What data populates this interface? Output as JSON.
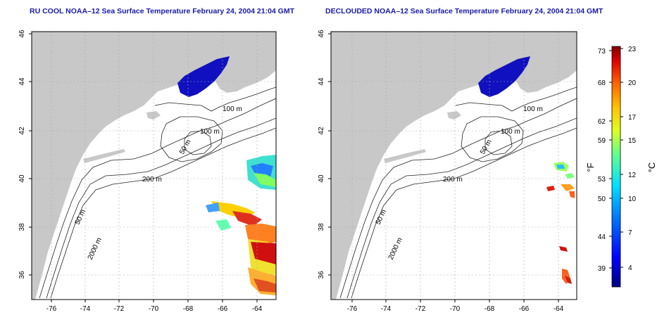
{
  "panels": [
    {
      "title": "RU COOL NOAA–12 Sea Surface Temperature February 24, 2004 21:04 GMT",
      "x_ticks": [
        "-76",
        "-74",
        "-72",
        "-70",
        "-68",
        "-66",
        "-64"
      ],
      "y_ticks": [
        "36",
        "38",
        "40",
        "42",
        "44",
        "46"
      ],
      "contour_labels": [
        "100 m",
        "100 m",
        "50 m",
        "200 m",
        "50 m",
        "2000 m"
      ]
    },
    {
      "title": "DECLOUDED NOAA–12 Sea Surface Temperature February 24, 2004 21:04 GMT",
      "x_ticks": [
        "-76",
        "-74",
        "-72",
        "-70",
        "-68",
        "-66",
        "-64"
      ],
      "y_ticks": [
        "36",
        "38",
        "40",
        "42",
        "44",
        "46"
      ],
      "contour_labels": [
        "100 m",
        "100 m",
        "50 m",
        "200 m",
        "50 m",
        "2000 m"
      ]
    }
  ],
  "colorbar": {
    "fahrenheit_label": "°F",
    "celsius_label": "°C",
    "fahrenheit_ticks": [
      "73",
      "68",
      "62",
      "59",
      "53",
      "50",
      "44",
      "39"
    ],
    "celsius_ticks": [
      "23",
      "20",
      "17",
      "15",
      "12",
      "10",
      "7",
      "4"
    ],
    "range_celsius": [
      1,
      23
    ]
  },
  "colors": {
    "land": "#c8c8c8",
    "ocean": "#ffffff",
    "cold_water": "#1010c0",
    "title": "#1a1aa8"
  }
}
